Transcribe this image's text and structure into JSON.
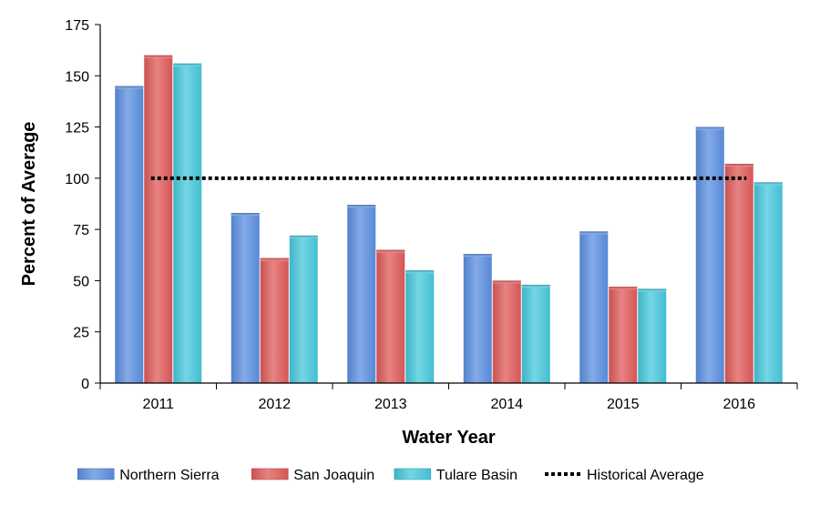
{
  "chart_data": {
    "type": "bar",
    "categories": [
      "2011",
      "2012",
      "2013",
      "2014",
      "2015",
      "2016"
    ],
    "series": [
      {
        "name": "Northern Sierra",
        "values": [
          145,
          83,
          87,
          63,
          74,
          125
        ],
        "color": "#5b8fe0"
      },
      {
        "name": "San Joaquin",
        "values": [
          160,
          61,
          65,
          50,
          47,
          107
        ],
        "color": "#e05a5a"
      },
      {
        "name": "Tulare Basin",
        "values": [
          156,
          72,
          55,
          48,
          46,
          98
        ],
        "color": "#45c8dc"
      }
    ],
    "reference_line": {
      "name": "Historical Average",
      "value": 100,
      "style": "dotted",
      "color": "#000000"
    },
    "xlabel": "Water Year",
    "ylabel": "Percent of Average",
    "ylim": [
      0,
      175
    ],
    "yticks": [
      "0",
      "25",
      "50",
      "75",
      "100",
      "125",
      "150",
      "175"
    ],
    "grid": false,
    "legend": "bottom"
  }
}
